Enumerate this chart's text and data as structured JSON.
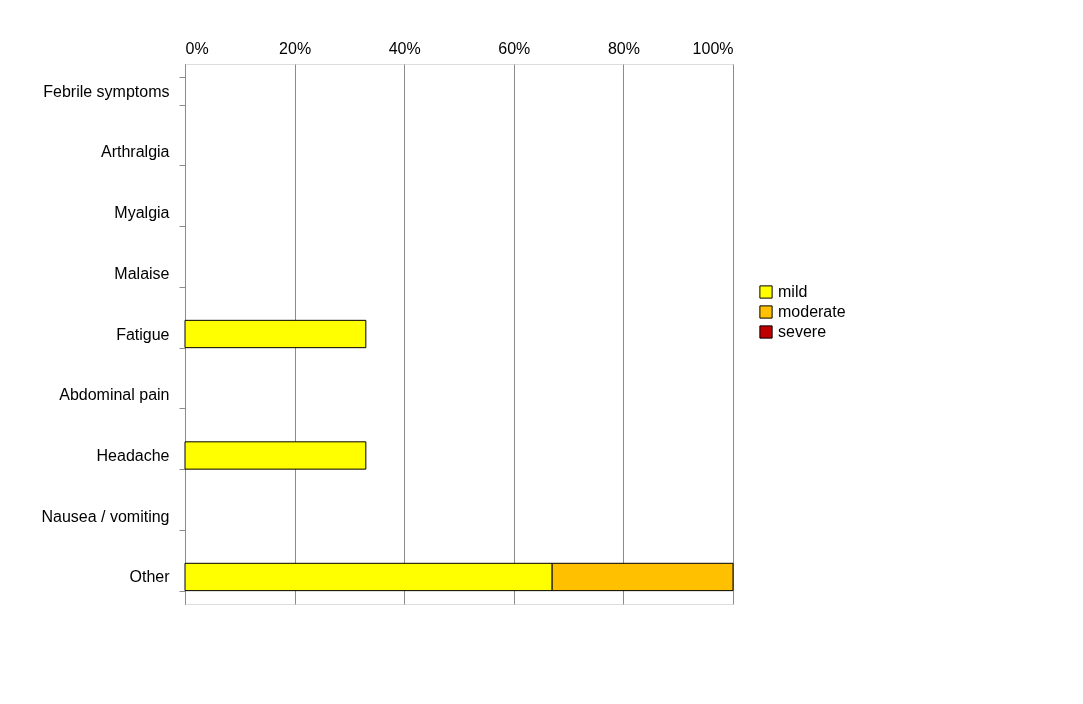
{
  "chart_data": {
    "type": "bar",
    "orientation": "horizontal",
    "stacked": true,
    "categories": [
      "Febrile symptoms",
      "Arthralgia",
      "Myalgia",
      "Malaise",
      "Fatigue",
      "Abdominal pain",
      "Headache",
      "Nausea / vomiting",
      "Other"
    ],
    "series": [
      {
        "name": "mild",
        "color": "#ffff00",
        "values": [
          null,
          null,
          null,
          null,
          33,
          null,
          33,
          null,
          67
        ]
      },
      {
        "name": "moderate",
        "color": "#ffc000",
        "values": [
          null,
          null,
          null,
          null,
          null,
          null,
          null,
          null,
          33
        ]
      },
      {
        "name": "severe",
        "color": "#c00000",
        "values": [
          null,
          null,
          null,
          null,
          null,
          null,
          null,
          null,
          null
        ]
      }
    ],
    "xlim": [
      0,
      100
    ],
    "xticks": [
      {
        "value": 0,
        "label": "0%"
      },
      {
        "value": 20,
        "label": "20%"
      },
      {
        "value": 40,
        "label": "40%"
      },
      {
        "value": 60,
        "label": "60%"
      },
      {
        "value": 80,
        "label": "80%"
      },
      {
        "value": 100,
        "label": "100%"
      }
    ],
    "grid": "x",
    "legend": "right"
  }
}
